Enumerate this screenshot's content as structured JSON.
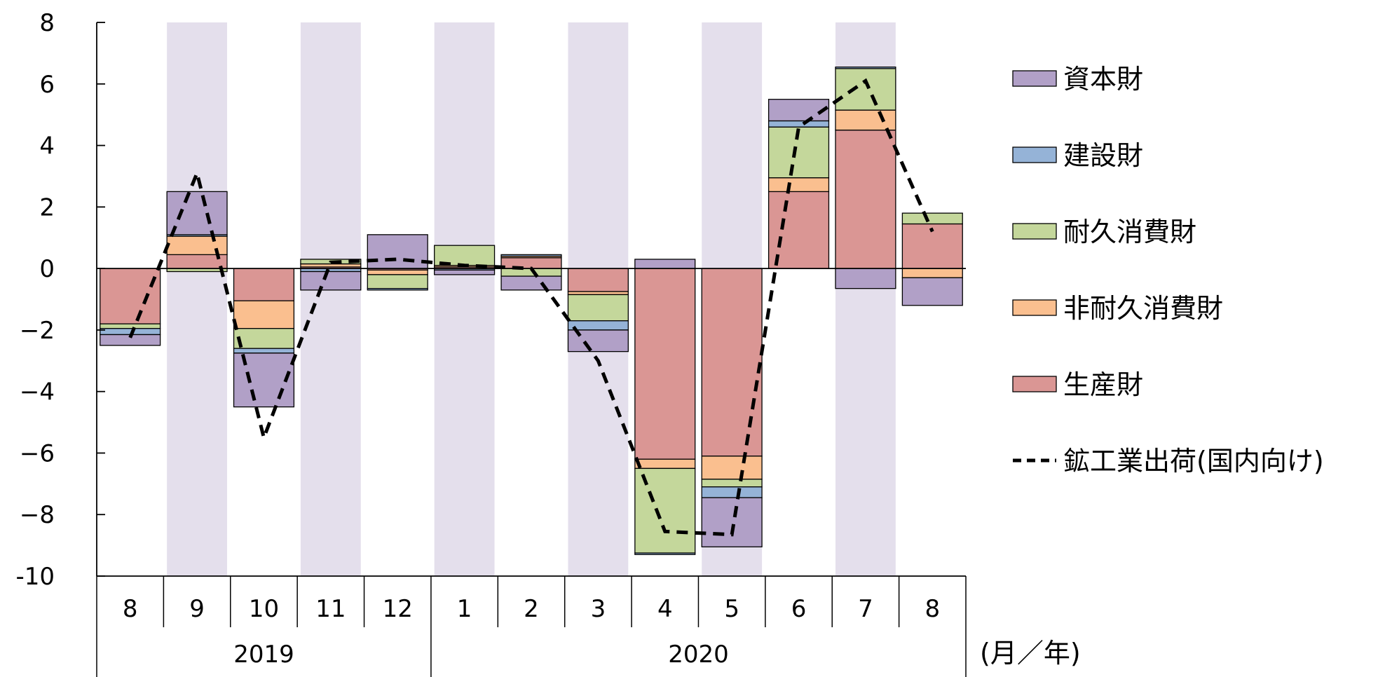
{
  "chart_data": {
    "type": "bar",
    "stacked": true,
    "x_unit_label": "(月／年)",
    "categories": [
      "8",
      "9",
      "10",
      "11",
      "12",
      "1",
      "2",
      "3",
      "4",
      "5",
      "6",
      "7",
      "8"
    ],
    "year_groups": [
      {
        "label": "2019",
        "start_index": 0,
        "end_index": 4
      },
      {
        "label": "2020",
        "start_index": 5,
        "end_index": 12
      }
    ],
    "ylim": [
      -10,
      8
    ],
    "yticks": [
      8,
      6,
      4,
      2,
      0,
      -2,
      -4,
      -6,
      -8,
      -10
    ],
    "ytick_labels": [
      "8",
      "6",
      "4",
      "2",
      "0",
      "−2",
      "−4",
      "−6",
      "−8",
      "-10"
    ],
    "shaded_categories": [
      1,
      3,
      5,
      7,
      9,
      11
    ],
    "shade_color": "#e4dfec",
    "series": [
      {
        "name": "生産財",
        "color": "#da9694",
        "values": [
          -1.8,
          0.45,
          -1.05,
          0.05,
          -0.05,
          0.05,
          0.35,
          -0.75,
          -6.2,
          -6.1,
          2.5,
          4.5,
          1.45
        ]
      },
      {
        "name": "非耐久消費財",
        "color": "#fabf8f",
        "values": [
          0.0,
          0.6,
          -0.9,
          0.1,
          -0.15,
          0.05,
          0.05,
          -0.1,
          -0.3,
          -0.75,
          0.45,
          0.65,
          -0.3
        ]
      },
      {
        "name": "耐久消費財",
        "color": "#c4d79b",
        "values": [
          -0.15,
          -0.1,
          -0.65,
          0.15,
          -0.45,
          0.65,
          -0.25,
          -0.85,
          -2.75,
          -0.25,
          1.65,
          1.35,
          0.35
        ]
      },
      {
        "name": "建設財",
        "color": "#95b3d7",
        "values": [
          -0.2,
          0.05,
          -0.15,
          -0.1,
          -0.05,
          -0.05,
          0.05,
          -0.3,
          -0.05,
          -0.35,
          0.2,
          0.05,
          0.0
        ]
      },
      {
        "name": "資本財",
        "color": "#b1a0c7",
        "values": [
          -0.35,
          1.4,
          -1.75,
          -0.6,
          1.1,
          -0.15,
          -0.45,
          -0.7,
          0.3,
          -1.6,
          0.7,
          -0.65,
          -0.9
        ]
      }
    ],
    "line": {
      "name": "鉱工業出荷(国内向け)",
      "values": [
        -2.25,
        3.1,
        -5.5,
        0.2,
        0.3,
        0.1,
        0.0,
        -3.0,
        -8.55,
        -8.65,
        4.6,
        6.1,
        1.2
      ]
    },
    "legend_order": [
      "資本財",
      "建設財",
      "耐久消費財",
      "非耐久消費財",
      "生産財",
      "鉱工業出荷(国内向け)"
    ],
    "legend_position": "right"
  }
}
